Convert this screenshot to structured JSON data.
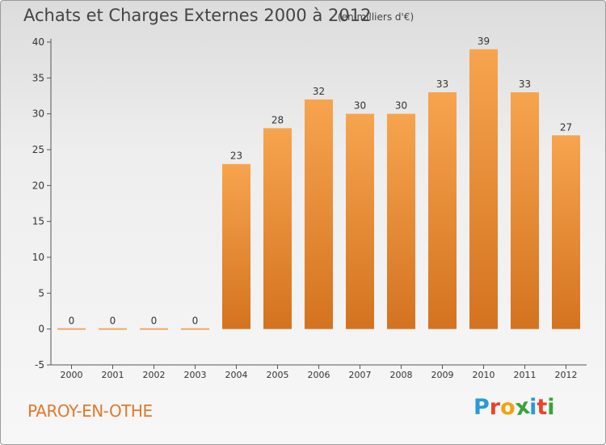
{
  "title": "Achats et Charges Externes 2000 à 2012",
  "unit": "(en milliers d'€)",
  "commune": "PAROY-EN-OTHE",
  "brand": {
    "letters": [
      "P",
      "r",
      "o",
      "x",
      "i",
      "t",
      "i"
    ],
    "colors": [
      "#2b9ad6",
      "#e8452b",
      "#f2a20f",
      "#3aa23a",
      "#2b9ad6",
      "#e8452b",
      "#3aa23a"
    ]
  },
  "colors": {
    "bar": "#f0953a",
    "axis": "#555555",
    "grid": "#d0d0d0"
  },
  "chart_data": {
    "type": "bar",
    "categories": [
      "2000",
      "2001",
      "2002",
      "2003",
      "2004",
      "2005",
      "2006",
      "2007",
      "2008",
      "2009",
      "2010",
      "2011",
      "2012"
    ],
    "values": [
      0,
      0,
      0,
      0,
      23,
      28,
      32,
      30,
      30,
      33,
      39,
      33,
      27
    ],
    "ylim": [
      -5,
      40
    ],
    "yticks": [
      -5,
      0,
      5,
      10,
      15,
      20,
      25,
      30,
      35,
      40
    ],
    "grid": false
  }
}
